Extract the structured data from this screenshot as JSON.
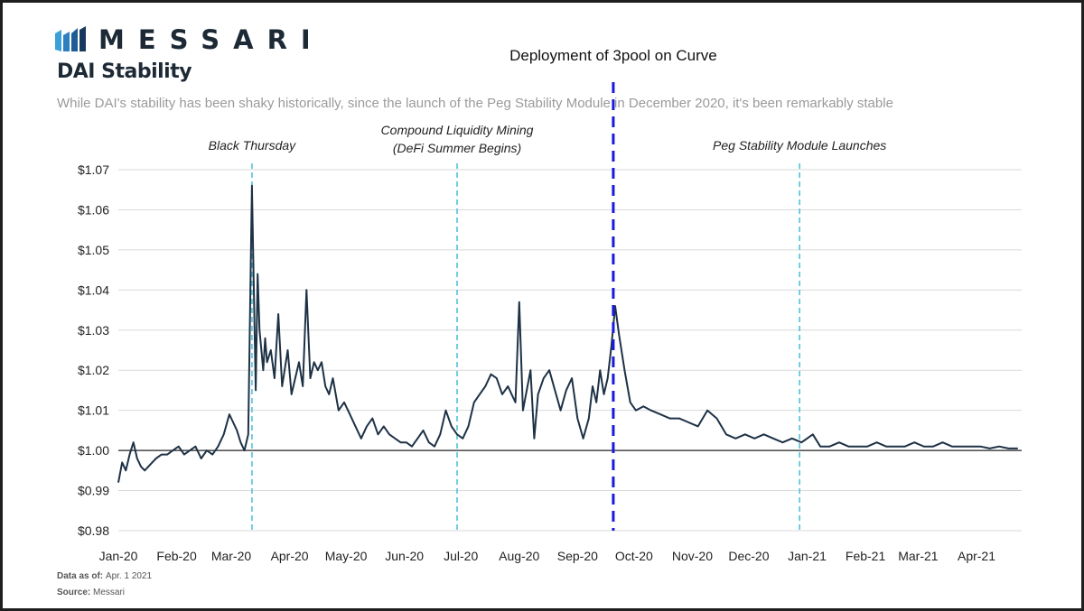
{
  "brand": {
    "logo_text": "MESSARI",
    "logo_icon": "messari-logo-icon"
  },
  "header": {
    "title": "DAI Stability",
    "subtitle": "While DAI's stability has been shaky historically, since the launch of the Peg Stability Module in December 2020,  it's been remarkably stable"
  },
  "footer": {
    "data_as_of_label": "Data as of:",
    "data_as_of_value": "Apr. 1 2021",
    "source_label": "Source:",
    "source_value": "Messari"
  },
  "colors": {
    "line": "#1e3246",
    "event_line": "#4fc3d9",
    "highlight_line": "#1a1adc",
    "grid": "#d9d9d9",
    "baseline": "#222222",
    "axis_text": "#222222"
  },
  "chart_data": {
    "type": "line",
    "title": "DAI Stability",
    "xlabel": "",
    "ylabel": "",
    "ylim": [
      0.98,
      1.07
    ],
    "yticks": [
      1.07,
      1.06,
      1.05,
      1.04,
      1.03,
      1.02,
      1.01,
      1.0,
      0.99,
      0.98
    ],
    "ytick_labels": [
      "$1.07",
      "$1.06",
      "$1.05",
      "$1.04",
      "$1.03",
      "$1.02",
      "$1.01",
      "$1.00",
      "$0.99",
      "$0.98"
    ],
    "xlim": [
      "2020-01-01",
      "2021-04-25"
    ],
    "xticks": [
      "2020-01-01",
      "2020-02-01",
      "2020-03-01",
      "2020-04-01",
      "2020-05-01",
      "2020-06-01",
      "2020-07-01",
      "2020-08-01",
      "2020-09-01",
      "2020-10-01",
      "2020-11-01",
      "2020-12-01",
      "2021-01-01",
      "2021-02-01",
      "2021-03-01",
      "2021-04-01"
    ],
    "xtick_labels": [
      "Jan-20",
      "Feb-20",
      "Mar-20",
      "Apr-20",
      "May-20",
      "Jun-20",
      "Jul-20",
      "Aug-20",
      "Sep-20",
      "Oct-20",
      "Nov-20",
      "Dec-20",
      "Jan-21",
      "Feb-21",
      "Mar-21",
      "Apr-21"
    ],
    "grid": true,
    "reference_line": 1.0,
    "series": [
      {
        "x": [
          "2020-01-01",
          "2020-01-03",
          "2020-01-05",
          "2020-01-07",
          "2020-01-09",
          "2020-01-11",
          "2020-01-13",
          "2020-01-15",
          "2020-01-17",
          "2020-01-19",
          "2020-01-21",
          "2020-01-24",
          "2020-01-27",
          "2020-01-30",
          "2020-02-02",
          "2020-02-05",
          "2020-02-08",
          "2020-02-11",
          "2020-02-14",
          "2020-02-17",
          "2020-02-20",
          "2020-02-23",
          "2020-02-26",
          "2020-02-29",
          "2020-03-02",
          "2020-03-04",
          "2020-03-06",
          "2020-03-08",
          "2020-03-10",
          "2020-03-12",
          "2020-03-13",
          "2020-03-14",
          "2020-03-15",
          "2020-03-16",
          "2020-03-18",
          "2020-03-19",
          "2020-03-20",
          "2020-03-22",
          "2020-03-24",
          "2020-03-26",
          "2020-03-28",
          "2020-03-31",
          "2020-04-02",
          "2020-04-04",
          "2020-04-06",
          "2020-04-08",
          "2020-04-10",
          "2020-04-12",
          "2020-04-14",
          "2020-04-16",
          "2020-04-18",
          "2020-04-20",
          "2020-04-22",
          "2020-04-24",
          "2020-04-27",
          "2020-04-30",
          "2020-05-03",
          "2020-05-06",
          "2020-05-09",
          "2020-05-12",
          "2020-05-15",
          "2020-05-18",
          "2020-05-21",
          "2020-05-24",
          "2020-05-27",
          "2020-05-30",
          "2020-06-02",
          "2020-06-05",
          "2020-06-08",
          "2020-06-11",
          "2020-06-14",
          "2020-06-17",
          "2020-06-20",
          "2020-06-23",
          "2020-06-26",
          "2020-06-29",
          "2020-07-02",
          "2020-07-05",
          "2020-07-08",
          "2020-07-11",
          "2020-07-14",
          "2020-07-17",
          "2020-07-20",
          "2020-07-23",
          "2020-07-26",
          "2020-07-28",
          "2020-07-30",
          "2020-08-01",
          "2020-08-03",
          "2020-08-05",
          "2020-08-07",
          "2020-08-09",
          "2020-08-11",
          "2020-08-14",
          "2020-08-17",
          "2020-08-20",
          "2020-08-23",
          "2020-08-26",
          "2020-08-29",
          "2020-09-01",
          "2020-09-04",
          "2020-09-07",
          "2020-09-09",
          "2020-09-11",
          "2020-09-13",
          "2020-09-15",
          "2020-09-17",
          "2020-09-19",
          "2020-09-21",
          "2020-09-23",
          "2020-09-26",
          "2020-09-29",
          "2020-10-02",
          "2020-10-06",
          "2020-10-10",
          "2020-10-15",
          "2020-10-20",
          "2020-10-25",
          "2020-10-30",
          "2020-11-04",
          "2020-11-09",
          "2020-11-14",
          "2020-11-19",
          "2020-11-24",
          "2020-11-29",
          "2020-12-04",
          "2020-12-09",
          "2020-12-14",
          "2020-12-19",
          "2020-12-24",
          "2020-12-29",
          "2021-01-01",
          "2021-01-04",
          "2021-01-08",
          "2021-01-13",
          "2021-01-18",
          "2021-01-23",
          "2021-01-28",
          "2021-02-02",
          "2021-02-07",
          "2021-02-12",
          "2021-02-17",
          "2021-02-22",
          "2021-02-27",
          "2021-03-04",
          "2021-03-09",
          "2021-03-14",
          "2021-03-19",
          "2021-03-24",
          "2021-03-29",
          "2021-04-03",
          "2021-04-08",
          "2021-04-13",
          "2021-04-18",
          "2021-04-23"
        ],
        "y": [
          0.992,
          0.997,
          0.995,
          0.999,
          1.002,
          0.998,
          0.996,
          0.995,
          0.996,
          0.997,
          0.998,
          0.999,
          0.999,
          1.0,
          1.001,
          0.999,
          1.0,
          1.001,
          0.998,
          1.0,
          0.999,
          1.001,
          1.004,
          1.009,
          1.007,
          1.005,
          1.002,
          1.0,
          1.004,
          1.066,
          1.04,
          1.015,
          1.044,
          1.03,
          1.02,
          1.028,
          1.022,
          1.025,
          1.018,
          1.034,
          1.016,
          1.025,
          1.014,
          1.018,
          1.022,
          1.016,
          1.04,
          1.018,
          1.022,
          1.02,
          1.022,
          1.016,
          1.014,
          1.018,
          1.01,
          1.012,
          1.009,
          1.006,
          1.003,
          1.006,
          1.008,
          1.004,
          1.006,
          1.004,
          1.003,
          1.002,
          1.002,
          1.001,
          1.003,
          1.005,
          1.002,
          1.001,
          1.004,
          1.01,
          1.006,
          1.004,
          1.003,
          1.006,
          1.012,
          1.014,
          1.016,
          1.019,
          1.018,
          1.014,
          1.016,
          1.014,
          1.012,
          1.037,
          1.01,
          1.015,
          1.02,
          1.003,
          1.014,
          1.018,
          1.02,
          1.015,
          1.01,
          1.015,
          1.018,
          1.008,
          1.003,
          1.008,
          1.016,
          1.012,
          1.02,
          1.014,
          1.018,
          1.026,
          1.036,
          1.029,
          1.02,
          1.012,
          1.01,
          1.011,
          1.01,
          1.009,
          1.008,
          1.008,
          1.007,
          1.006,
          1.01,
          1.008,
          1.004,
          1.003,
          1.004,
          1.003,
          1.004,
          1.003,
          1.002,
          1.003,
          1.002,
          1.003,
          1.004,
          1.001,
          1.001,
          1.002,
          1.001,
          1.001,
          1.001,
          1.002,
          1.001,
          1.001,
          1.001,
          1.002,
          1.001,
          1.001,
          1.002,
          1.001,
          1.001,
          1.001,
          1.001,
          1.0005,
          1.001,
          1.0005,
          1.0005
        ]
      }
    ],
    "events": [
      {
        "date": "2020-03-12",
        "label": "Black Thursday",
        "style": "event"
      },
      {
        "date": "2020-06-29",
        "label_line1": "Compound Liquidity Mining",
        "label_line2": "(DeFi Summer Begins)",
        "style": "event"
      },
      {
        "date": "2020-09-20",
        "label": "Deployment of 3pool on Curve",
        "style": "highlight"
      },
      {
        "date": "2020-12-28",
        "label": "Peg Stability Module Launches",
        "style": "event"
      }
    ]
  }
}
